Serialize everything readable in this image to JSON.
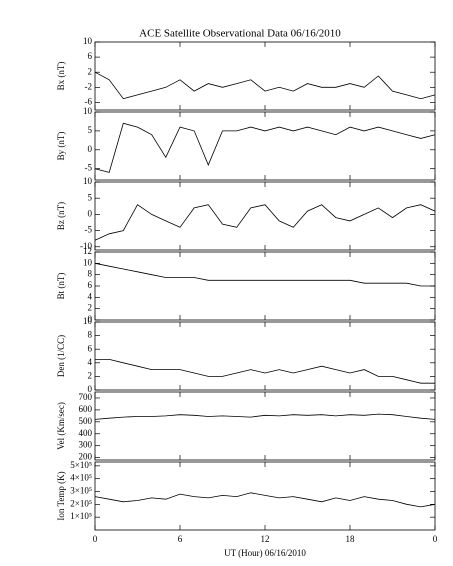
{
  "chart_data": [
    {
      "type": "line",
      "title": "ACE Satellite Observational Data   06/16/2010",
      "ylabel": "Bx (nT)",
      "color": "#000000",
      "x": [
        0,
        1,
        2,
        3,
        4,
        5,
        6,
        7,
        8,
        9,
        10,
        11,
        12,
        13,
        14,
        15,
        16,
        17,
        18,
        19,
        20,
        21,
        22,
        23,
        24
      ],
      "values": [
        2,
        0,
        -5,
        -4,
        -3,
        -2,
        0,
        -3,
        -1,
        -2,
        -1,
        0,
        -3,
        -2,
        -3,
        -1,
        -2,
        -2,
        -1,
        -2,
        1,
        -3,
        -4,
        -5,
        -4
      ],
      "ylim": [
        -8,
        10
      ],
      "yticks": [
        10,
        6,
        2,
        -2,
        -6
      ]
    },
    {
      "type": "line",
      "ylabel": "By (nT)",
      "color": "#000000",
      "x": [
        0,
        1,
        2,
        3,
        4,
        5,
        6,
        7,
        8,
        9,
        10,
        11,
        12,
        13,
        14,
        15,
        16,
        17,
        18,
        19,
        20,
        21,
        22,
        23,
        24
      ],
      "values": [
        -5,
        -6,
        7,
        6,
        4,
        -2,
        6,
        5,
        -4,
        5,
        5,
        6,
        5,
        6,
        5,
        6,
        5,
        4,
        6,
        5,
        6,
        5,
        4,
        3,
        4
      ],
      "ylim": [
        -8,
        10
      ],
      "yticks": [
        10,
        5,
        0,
        -5
      ]
    },
    {
      "type": "line",
      "ylabel": "Bz (nT)",
      "color": "#000000",
      "x": [
        0,
        1,
        2,
        3,
        4,
        5,
        6,
        7,
        8,
        9,
        10,
        11,
        12,
        13,
        14,
        15,
        16,
        17,
        18,
        19,
        20,
        21,
        22,
        23,
        24
      ],
      "values": [
        -8,
        -6,
        -5,
        3,
        0,
        -2,
        -4,
        2,
        3,
        -3,
        -4,
        2,
        3,
        -2,
        -4,
        1,
        3,
        -1,
        -2,
        0,
        2,
        -1,
        2,
        3,
        1
      ],
      "ylim": [
        -11,
        10
      ],
      "yticks": [
        10,
        5,
        0,
        -5,
        -10
      ]
    },
    {
      "type": "line",
      "ylabel": "Bt (nT)",
      "color": "#000000",
      "x": [
        0,
        1,
        2,
        3,
        4,
        5,
        6,
        7,
        8,
        9,
        10,
        11,
        12,
        13,
        14,
        15,
        16,
        17,
        18,
        19,
        20,
        21,
        22,
        23,
        24
      ],
      "values": [
        10,
        9.5,
        9,
        8.5,
        8,
        7.5,
        7.5,
        7.5,
        7,
        7,
        7,
        7,
        7,
        7,
        7,
        7,
        7,
        7,
        7,
        6.5,
        6.5,
        6.5,
        6.5,
        6,
        6
      ],
      "ylim": [
        0,
        12
      ],
      "yticks": [
        12,
        10,
        8,
        6,
        4,
        2,
        0
      ]
    },
    {
      "type": "line",
      "ylabel": "Den (1/CC)",
      "color": "#000000",
      "x": [
        0,
        1,
        2,
        3,
        4,
        5,
        6,
        7,
        8,
        9,
        10,
        11,
        12,
        13,
        14,
        15,
        16,
        17,
        18,
        19,
        20,
        21,
        22,
        23,
        24
      ],
      "values": [
        4.5,
        4.5,
        4,
        3.5,
        3,
        3,
        3,
        2.5,
        2,
        2,
        2.5,
        3,
        2.5,
        3,
        2.5,
        3,
        3.5,
        3,
        2.5,
        3,
        2,
        2,
        1.5,
        1,
        1
      ],
      "ylim": [
        0,
        10
      ],
      "yticks": [
        10,
        8,
        6,
        4,
        2,
        0
      ]
    },
    {
      "type": "line",
      "ylabel": "Vel (Km/sec)",
      "color": "#000000",
      "x": [
        0,
        1,
        2,
        3,
        4,
        5,
        6,
        7,
        8,
        9,
        10,
        11,
        12,
        13,
        14,
        15,
        16,
        17,
        18,
        19,
        20,
        21,
        22,
        23,
        24
      ],
      "values": [
        520,
        530,
        540,
        545,
        545,
        550,
        560,
        555,
        545,
        550,
        545,
        540,
        555,
        550,
        560,
        555,
        560,
        550,
        560,
        555,
        565,
        560,
        545,
        530,
        520
      ],
      "ylim": [
        180,
        750
      ],
      "yticks": [
        700,
        600,
        500,
        400,
        300,
        200
      ]
    },
    {
      "type": "line",
      "ylabel": "Ion Temp (K)",
      "xlabel": "UT (Hour)   06/16/2010",
      "color": "#000000",
      "x": [
        0,
        1,
        2,
        3,
        4,
        5,
        6,
        7,
        8,
        9,
        10,
        11,
        12,
        13,
        14,
        15,
        16,
        17,
        18,
        19,
        20,
        21,
        22,
        23,
        24
      ],
      "values": [
        260000,
        240000,
        220000,
        230000,
        250000,
        240000,
        280000,
        260000,
        250000,
        270000,
        260000,
        290000,
        270000,
        250000,
        260000,
        240000,
        220000,
        250000,
        230000,
        260000,
        240000,
        230000,
        200000,
        180000,
        200000
      ],
      "ylim": [
        0,
        530000
      ],
      "yticks": [
        {
          "value": 500000,
          "label": "5×10⁵"
        },
        {
          "value": 400000,
          "label": "4×10⁵"
        },
        {
          "value": 300000,
          "label": "3×10⁵"
        },
        {
          "value": 200000,
          "label": "2×10⁵"
        },
        {
          "value": 100000,
          "label": "1×10⁵"
        }
      ],
      "xlim": [
        0,
        24
      ],
      "xticks": [
        0,
        6,
        12,
        18,
        {
          "value": 24,
          "label": "0"
        }
      ]
    }
  ]
}
